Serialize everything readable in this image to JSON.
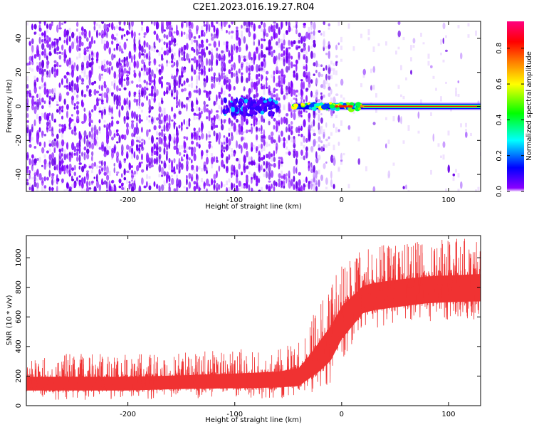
{
  "title": "C2E1.2023.016.19.27.R04",
  "chart_data": [
    {
      "type": "heatmap",
      "xlabel": "Height of straight line (km)",
      "ylabel": "Frequency (Hz)",
      "xlim": [
        -295,
        130
      ],
      "ylim": [
        -50,
        50
      ],
      "xticks": [
        -200,
        -100,
        0,
        100
      ],
      "yticks": [
        -40,
        -20,
        0,
        20,
        40
      ],
      "colorbar": {
        "label": "Normalized spectral amplitude",
        "range": [
          0,
          0.95
        ],
        "ticks": [
          0.0,
          0.2,
          0.4,
          0.6,
          0.8
        ],
        "tick_labels": [
          "0.0",
          "0.2",
          "0.4",
          "0.6",
          "0.8"
        ],
        "colormap": [
          "#f0d8ff",
          "#7a00ff",
          "#0000ff",
          "#00ffff",
          "#00ff00",
          "#ffff00",
          "#ff7f00",
          "#ff0000",
          "#ff0080"
        ]
      },
      "features": {
        "broadband_noise_x_range": [
          -295,
          -30
        ],
        "fading_noise_x_range": [
          -30,
          0
        ],
        "clutter_blob_x_range": [
          -110,
          -60
        ],
        "narrow_line_x_range": [
          -45,
          130
        ],
        "narrow_line_frequency_hz": 0
      }
    },
    {
      "type": "line",
      "xlabel": "Height of straight line (km)",
      "ylabel": "SNR (10 * v/v)",
      "xlim": [
        -295,
        130
      ],
      "ylim": [
        0,
        1150
      ],
      "xticks": [
        -200,
        -100,
        0,
        100
      ],
      "yticks": [
        0,
        200,
        400,
        600,
        800,
        1000
      ],
      "color": "#f03232",
      "series": [
        {
          "envelope": [
            {
              "x": -295,
              "low": 40,
              "high": 290
            },
            {
              "x": -250,
              "low": 40,
              "high": 290
            },
            {
              "x": -200,
              "low": 40,
              "high": 290
            },
            {
              "x": -150,
              "low": 50,
              "high": 300
            },
            {
              "x": -100,
              "low": 50,
              "high": 320
            },
            {
              "x": -60,
              "low": 50,
              "high": 340
            },
            {
              "x": -40,
              "low": 50,
              "high": 380
            },
            {
              "x": -30,
              "low": 80,
              "high": 500
            },
            {
              "x": -20,
              "low": 100,
              "high": 650
            },
            {
              "x": -10,
              "low": 150,
              "high": 780
            },
            {
              "x": 0,
              "low": 300,
              "high": 900
            },
            {
              "x": 10,
              "low": 400,
              "high": 950
            },
            {
              "x": 20,
              "low": 500,
              "high": 1000
            },
            {
              "x": 30,
              "low": 520,
              "high": 1020
            },
            {
              "x": 50,
              "low": 540,
              "high": 1040
            },
            {
              "x": 80,
              "low": 570,
              "high": 1060
            },
            {
              "x": 110,
              "low": 580,
              "high": 1070
            },
            {
              "x": 130,
              "low": 580,
              "high": 1080
            }
          ]
        }
      ]
    }
  ]
}
